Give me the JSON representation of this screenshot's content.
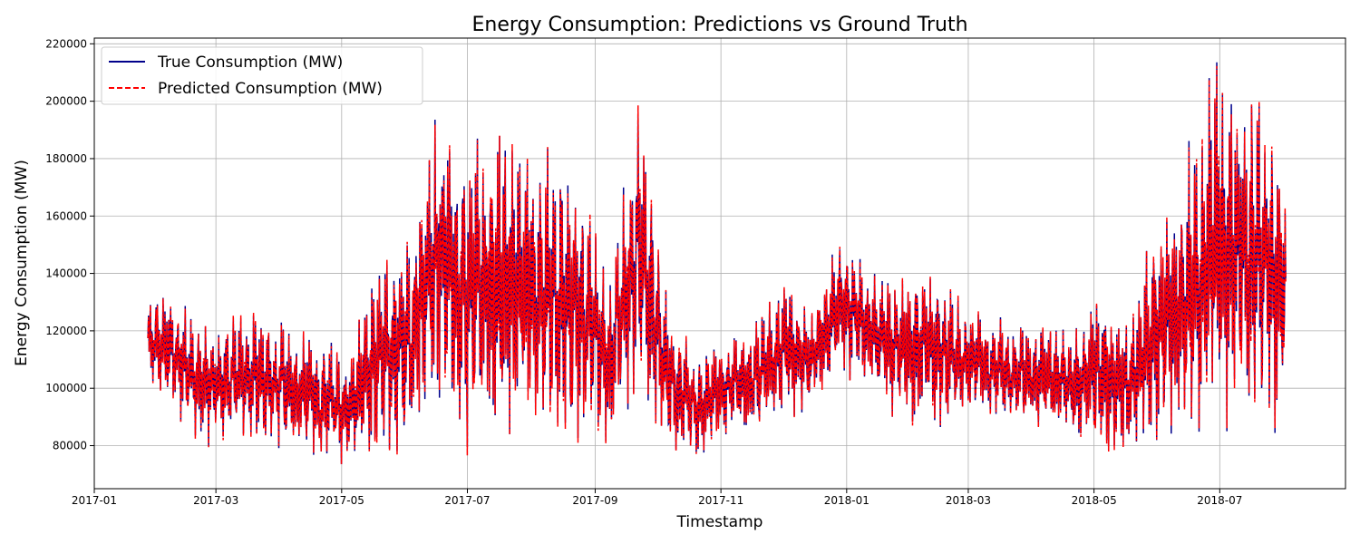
{
  "chart_data": {
    "type": "line",
    "title": "Energy Consumption: Predictions vs Ground Truth",
    "xlabel": "Timestamp",
    "ylabel": "Energy Consumption (MW)",
    "grid": true,
    "legend_position": "top-left",
    "xlim": [
      "2017-01-01",
      "2018-08-31"
    ],
    "ylim": [
      65000,
      222000
    ],
    "x_ticks": [
      "2017-01",
      "2017-03",
      "2017-05",
      "2017-07",
      "2017-09",
      "2017-11",
      "2018-01",
      "2018-03",
      "2018-05",
      "2018-07"
    ],
    "y_ticks": [
      80000,
      100000,
      120000,
      140000,
      160000,
      180000,
      200000,
      220000
    ],
    "series": [
      {
        "name": "True Consumption (MW)",
        "color": "#00008b",
        "style": "solid"
      },
      {
        "name": "Predicted Consumption (MW)",
        "color": "#ff0000",
        "style": "dashed"
      }
    ],
    "x_dates": [
      "2017-01-27",
      "2017-02-10",
      "2017-02-24",
      "2017-03-10",
      "2017-03-24",
      "2017-04-07",
      "2017-04-21",
      "2017-05-05",
      "2017-05-19",
      "2017-06-02",
      "2017-06-16",
      "2017-06-30",
      "2017-07-14",
      "2017-07-28",
      "2017-08-11",
      "2017-08-25",
      "2017-09-08",
      "2017-09-22",
      "2017-10-06",
      "2017-10-20",
      "2017-11-03",
      "2017-11-17",
      "2017-12-01",
      "2017-12-15",
      "2017-12-29",
      "2018-01-12",
      "2018-01-26",
      "2018-02-09",
      "2018-02-23",
      "2018-03-09",
      "2018-03-23",
      "2018-04-06",
      "2018-04-20",
      "2018-05-04",
      "2018-05-18",
      "2018-06-01",
      "2018-06-15",
      "2018-06-29",
      "2018-07-13",
      "2018-07-27",
      "2018-08-02"
    ],
    "upper_envelope": [
      135000,
      134000,
      123000,
      126000,
      129000,
      121000,
      118000,
      112000,
      150000,
      151000,
      204000,
      184000,
      196000,
      190000,
      183000,
      174000,
      144000,
      201000,
      134000,
      112000,
      118000,
      122000,
      141000,
      128000,
      154000,
      143000,
      140000,
      145000,
      134000,
      126000,
      125000,
      123000,
      121000,
      136000,
      126000,
      162000,
      184000,
      215000,
      210000,
      200000,
      171000
    ],
    "lower_envelope": [
      100000,
      90000,
      78000,
      82000,
      80000,
      78000,
      75000,
      73000,
      74000,
      78000,
      88000,
      76000,
      80000,
      82000,
      79000,
      80000,
      73000,
      100000,
      74000,
      76000,
      82000,
      84000,
      88000,
      92000,
      105000,
      98000,
      88000,
      86000,
      86000,
      90000,
      85000,
      86000,
      82000,
      75000,
      76000,
      80000,
      78000,
      82000,
      82000,
      82000,
      92000
    ]
  }
}
